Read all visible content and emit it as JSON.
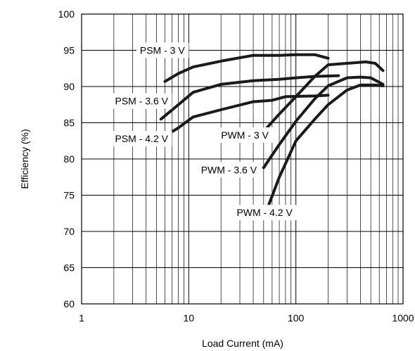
{
  "chart_data": {
    "type": "line",
    "title": "",
    "xlabel": "Load Current (mA)",
    "ylabel": "Efficiency (%)",
    "xscale": "log",
    "xlim": [
      1,
      1000
    ],
    "ylim": [
      60,
      100
    ],
    "x_ticks": [
      1,
      10,
      100,
      1000
    ],
    "x_tick_labels": [
      "1",
      "10",
      "100",
      "1000"
    ],
    "y_ticks": [
      60,
      65,
      70,
      75,
      80,
      85,
      90,
      95,
      100
    ],
    "y_tick_labels": [
      "60",
      "65",
      "70",
      "75",
      "80",
      "85",
      "90",
      "95",
      "100"
    ],
    "grid": true,
    "line_color": "#1a1a1a",
    "series": [
      {
        "name": "PSM - 3 V",
        "x": [
          6,
          8,
          11,
          20,
          40,
          70,
          100,
          150,
          200
        ],
        "y": [
          90.7,
          91.8,
          92.7,
          93.5,
          94.3,
          94.3,
          94.4,
          94.4,
          93.9
        ]
      },
      {
        "name": "PSM - 3.6 V",
        "x": [
          5.5,
          8,
          11,
          20,
          40,
          70,
          100,
          150,
          250
        ],
        "y": [
          85.5,
          87.5,
          89.2,
          90.3,
          90.8,
          91.0,
          91.2,
          91.4,
          91.5
        ]
      },
      {
        "name": "PSM - 4.2 V",
        "x": [
          5.5,
          8,
          11,
          20,
          40,
          60,
          80,
          150,
          200
        ],
        "y": [
          82.8,
          84.3,
          85.8,
          86.8,
          87.9,
          88.1,
          88.6,
          88.7,
          88.8
        ]
      },
      {
        "name": "PWM - 3 V",
        "x": [
          50,
          70,
          100,
          150,
          200,
          300,
          450,
          550,
          650
        ],
        "y": [
          83.8,
          86.2,
          88.6,
          91.4,
          93.0,
          93.2,
          93.4,
          93.2,
          92.2
        ]
      },
      {
        "name": "PWM - 3.6 V",
        "x": [
          50,
          70,
          100,
          150,
          200,
          300,
          400,
          500,
          650
        ],
        "y": [
          78.8,
          82.0,
          85.2,
          88.3,
          90.1,
          91.2,
          91.3,
          91.2,
          90.3
        ]
      },
      {
        "name": "PWM - 4.2 V",
        "x": [
          50,
          70,
          100,
          150,
          200,
          300,
          400,
          550,
          650
        ],
        "y": [
          71.8,
          77.5,
          82.5,
          85.5,
          87.5,
          89.5,
          90.2,
          90.2,
          90.1
        ]
      }
    ],
    "annotations": [
      {
        "text": "PSM - 3 V",
        "series": 0,
        "x": 3.5,
        "y": 95
      },
      {
        "text": "PSM - 3.6 V",
        "series": 1,
        "x": 2.05,
        "y": 88
      },
      {
        "text": "PSM - 4.2 V",
        "series": 2,
        "x": 2.05,
        "y": 82.8
      },
      {
        "text": "PWM - 3 V",
        "series": 3,
        "x": 20,
        "y": 83.3
      },
      {
        "text": "PWM - 3.6 V",
        "series": 4,
        "x": 13,
        "y": 78.5
      },
      {
        "text": "PWM - 4.2 V",
        "series": 5,
        "x": 28,
        "y": 72.6
      }
    ]
  }
}
